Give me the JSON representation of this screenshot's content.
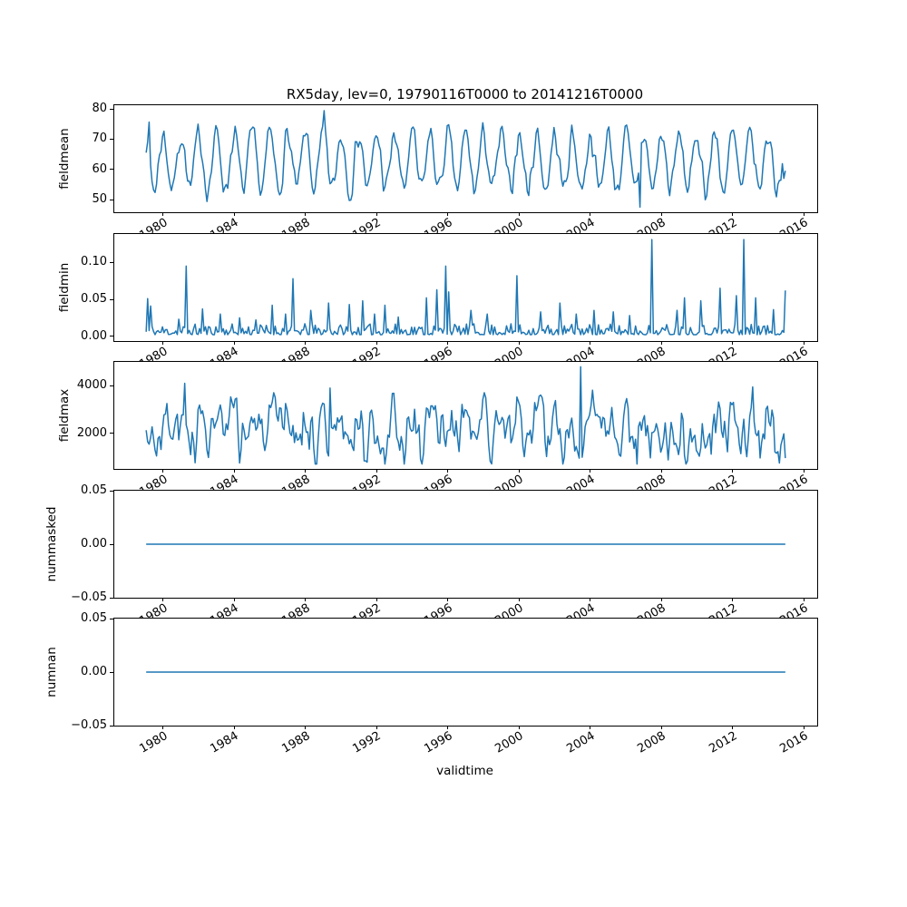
{
  "chart_data": {
    "type": "line",
    "title": "RX5day, lev=0, 19790116T0000 to 20141216T0000",
    "xlabel": "validtime",
    "line_color": "#1f77b4",
    "axis_color": "#000000",
    "background": "#ffffff",
    "legend": "none",
    "grid": false,
    "x_start": 1979.0417,
    "x_end": 2014.9583,
    "n_points": 432,
    "xlim": [
      1977.25,
      2016.75
    ],
    "xticks": [
      {
        "value": 1980,
        "label": "1980"
      },
      {
        "value": 1984,
        "label": "1984"
      },
      {
        "value": 1988,
        "label": "1988"
      },
      {
        "value": 1992,
        "label": "1992"
      },
      {
        "value": 1996,
        "label": "1996"
      },
      {
        "value": 2000,
        "label": "2000"
      },
      {
        "value": 2004,
        "label": "2004"
      },
      {
        "value": 2008,
        "label": "2008"
      },
      {
        "value": 2012,
        "label": "2012"
      },
      {
        "value": 2016,
        "label": "2016"
      }
    ],
    "subplots": [
      {
        "name": "fieldmean",
        "ylabel": "fieldmean",
        "ylim": [
          45.8,
          81.2
        ],
        "yticks": [
          {
            "value": 50,
            "label": "50"
          },
          {
            "value": 60,
            "label": "60"
          },
          {
            "value": 70,
            "label": "70"
          },
          {
            "value": 80,
            "label": "80"
          }
        ],
        "gen": {
          "kind": "seasonal",
          "seed": 7,
          "base": 62.5,
          "season_amp": 9,
          "noise_amp": 5,
          "clamp": [
            47.4,
            79.6
          ],
          "extremes": [
            [
              1979.05,
              65.5
            ],
            [
              1979.21,
              75.6
            ],
            [
              1989.04,
              79.4
            ],
            [
              2006.79,
              47.5
            ],
            [
              2014.87,
              57.0
            ],
            [
              2014.96,
              59.5
            ]
          ]
        }
      },
      {
        "name": "fieldmin",
        "ylabel": "fieldmin",
        "ylim": [
          -0.0066,
          0.1386
        ],
        "yticks": [
          {
            "value": 0.0,
            "label": "0.00"
          },
          {
            "value": 0.05,
            "label": "0.05"
          },
          {
            "value": 0.1,
            "label": "0.10"
          }
        ],
        "gen": {
          "kind": "spiky",
          "seed": 11,
          "base": 0.002,
          "noise_amp": 0.015,
          "clamp": [
            0.0005,
            0.132
          ],
          "spikes": [
            [
              1979.1,
              0.051
            ],
            [
              1979.3,
              0.041
            ],
            [
              1980.9,
              0.023
            ],
            [
              1981.29,
              0.095
            ],
            [
              1982.2,
              0.037
            ],
            [
              1983.2,
              0.03
            ],
            [
              1984.3,
              0.025
            ],
            [
              1985.2,
              0.022
            ],
            [
              1986.1,
              0.042
            ],
            [
              1986.9,
              0.03
            ],
            [
              1987.29,
              0.078
            ],
            [
              1988.3,
              0.035
            ],
            [
              1989.3,
              0.045
            ],
            [
              1990.5,
              0.043
            ],
            [
              1991.2,
              0.048
            ],
            [
              1991.9,
              0.03
            ],
            [
              1992.5,
              0.042
            ],
            [
              1993.2,
              0.026
            ],
            [
              1994.79,
              0.052
            ],
            [
              1995.37,
              0.063
            ],
            [
              1995.87,
              0.095
            ],
            [
              1996.04,
              0.06
            ],
            [
              1997.3,
              0.035
            ],
            [
              1998.2,
              0.03
            ],
            [
              1999.87,
              0.082
            ],
            [
              2001.2,
              0.033
            ],
            [
              2002.3,
              0.045
            ],
            [
              2003.2,
              0.03
            ],
            [
              2004.2,
              0.035
            ],
            [
              2005.3,
              0.033
            ],
            [
              2006.2,
              0.028
            ],
            [
              2007.45,
              0.131
            ],
            [
              2008.9,
              0.035
            ],
            [
              2009.3,
              0.052
            ],
            [
              2010.2,
              0.048
            ],
            [
              2011.29,
              0.065
            ],
            [
              2012.21,
              0.055
            ],
            [
              2012.62,
              0.131
            ],
            [
              2013.3,
              0.052
            ],
            [
              2014.3,
              0.036
            ],
            [
              2014.958,
              0.062
            ]
          ]
        }
      },
      {
        "name": "fieldmax",
        "ylabel": "fieldmax",
        "ylim": [
          495,
          5005
        ],
        "yticks": [
          {
            "value": 2000,
            "label": "2000"
          },
          {
            "value": 4000,
            "label": "4000"
          }
        ],
        "gen": {
          "kind": "seasonal",
          "seed": 3,
          "base": 2150,
          "season_amp": 350,
          "noise_amp": 1500,
          "clamp": [
            700,
            4800
          ],
          "extremes": [
            [
              1981.2,
              4100
            ],
            [
              1989.4,
              3900
            ],
            [
              2003.45,
              4800
            ],
            [
              2006.6,
              700
            ],
            [
              2013.1,
              3950
            ],
            [
              2014.958,
              950
            ]
          ]
        }
      },
      {
        "name": "nummasked",
        "ylabel": "nummasked",
        "ylim": [
          -0.05,
          0.05
        ],
        "yticks": [
          {
            "value": -0.05,
            "label": "−0.05"
          },
          {
            "value": 0.0,
            "label": "0.00"
          },
          {
            "value": 0.05,
            "label": "0.05"
          }
        ],
        "gen": {
          "kind": "constant",
          "value": 0
        }
      },
      {
        "name": "numnan",
        "ylabel": "numnan",
        "ylim": [
          -0.05,
          0.05
        ],
        "yticks": [
          {
            "value": -0.05,
            "label": "−0.05"
          },
          {
            "value": 0.0,
            "label": "0.00"
          },
          {
            "value": 0.05,
            "label": "0.05"
          }
        ],
        "gen": {
          "kind": "constant",
          "value": 0
        }
      }
    ]
  }
}
